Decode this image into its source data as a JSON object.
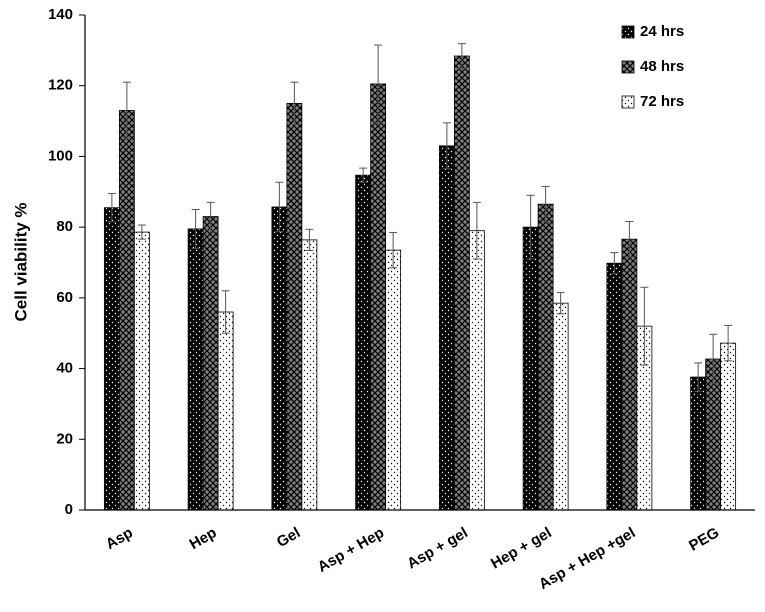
{
  "chart_data": {
    "type": "bar",
    "y_label": "Cell viability %",
    "categories": [
      "Asp",
      "Hep",
      "Gel",
      "Asp + Hep",
      "Asp + gel",
      "Hep + gel",
      "Asp + Hep +gel",
      "PEG"
    ],
    "series": [
      {
        "name": "24 hrs",
        "color": "#000000",
        "pattern": "dots",
        "values": [
          85.5,
          79.5,
          85.7,
          94.7,
          103,
          80,
          69.8,
          37.6
        ],
        "errors": [
          4,
          5.5,
          7,
          2,
          6.5,
          9,
          3,
          4
        ]
      },
      {
        "name": "48 hrs",
        "color": "#808080",
        "pattern": "crosshatch",
        "values": [
          113,
          83,
          115,
          120.5,
          128.4,
          86.5,
          76.6,
          42.7
        ],
        "errors": [
          8,
          4,
          6,
          11,
          3.5,
          5,
          5,
          7
        ]
      },
      {
        "name": "72 hrs",
        "color": "#ffffff",
        "pattern": "dots",
        "values": [
          78.6,
          56,
          76.4,
          73.5,
          79,
          58.5,
          52,
          47.2
        ],
        "errors": [
          2,
          6,
          3,
          5,
          8,
          3,
          11,
          5
        ]
      }
    ],
    "ylim": [
      0,
      140
    ],
    "yticks": [
      0,
      20,
      40,
      60,
      80,
      100,
      120,
      140
    ],
    "grid": false,
    "legend": "upper right"
  }
}
